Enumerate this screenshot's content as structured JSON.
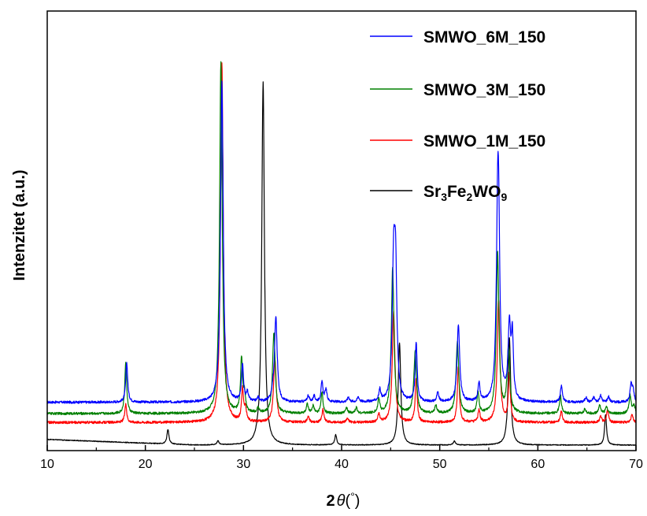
{
  "chart_data": {
    "type": "line",
    "title": "",
    "xlabel": {
      "main": "2",
      "italic": "θ",
      "open": "(",
      "unit": "°",
      "close": ")"
    },
    "ylabel": "Intenzitet (a.u.)",
    "xlim": [
      10,
      70
    ],
    "x_ticks": [
      "10",
      "20",
      "30",
      "40",
      "50",
      "60",
      "70"
    ],
    "y_ticks": [],
    "ylim": [
      0,
      1000
    ],
    "grid": false,
    "legend_position": "top-right",
    "series": [
      {
        "name": "SMWO_6M_150",
        "color": "#0000ff",
        "baseline": 106,
        "noise": 3,
        "peaks": [
          [
            18.1,
            98
          ],
          [
            27.8,
            795
          ],
          [
            29.9,
            90
          ],
          [
            30.4,
            22
          ],
          [
            31.5,
            10
          ],
          [
            33.0,
            14
          ],
          [
            33.3,
            210
          ],
          [
            36.6,
            16
          ],
          [
            37.2,
            14
          ],
          [
            38.0,
            48
          ],
          [
            38.4,
            30
          ],
          [
            40.7,
            12
          ],
          [
            41.7,
            12
          ],
          [
            43.9,
            28
          ],
          [
            45.3,
            305
          ],
          [
            45.5,
            300
          ],
          [
            47.6,
            145
          ],
          [
            49.8,
            22
          ],
          [
            51.9,
            188
          ],
          [
            54.0,
            45
          ],
          [
            55.9,
            345
          ],
          [
            56.0,
            330
          ],
          [
            57.1,
            180
          ],
          [
            57.4,
            150
          ],
          [
            62.4,
            40
          ],
          [
            64.9,
            12
          ],
          [
            65.7,
            12
          ],
          [
            66.4,
            16
          ],
          [
            67.2,
            14
          ],
          [
            69.5,
            42
          ],
          [
            69.7,
            30
          ]
        ]
      },
      {
        "name": "SMWO_3M_150",
        "color": "#008000",
        "baseline": 78,
        "noise": 3,
        "peaks": [
          [
            18.0,
            125
          ],
          [
            27.7,
            868
          ],
          [
            29.8,
            132
          ],
          [
            30.1,
            45
          ],
          [
            31.5,
            12
          ],
          [
            33.1,
            200
          ],
          [
            36.5,
            22
          ],
          [
            37.1,
            18
          ],
          [
            38.0,
            52
          ],
          [
            40.5,
            14
          ],
          [
            41.5,
            14
          ],
          [
            43.8,
            34
          ],
          [
            45.2,
            358
          ],
          [
            47.5,
            152
          ],
          [
            49.6,
            20
          ],
          [
            51.8,
            178
          ],
          [
            53.9,
            52
          ],
          [
            55.9,
            395
          ],
          [
            57.0,
            160
          ],
          [
            62.3,
            44
          ],
          [
            64.8,
            12
          ],
          [
            66.3,
            22
          ],
          [
            67.0,
            16
          ],
          [
            69.4,
            46
          ],
          [
            69.8,
            20
          ]
        ]
      },
      {
        "name": "SMWO_1M_150",
        "color": "#ff0000",
        "baseline": 56,
        "noise": 3,
        "peaks": [
          [
            18.0,
            44
          ],
          [
            27.8,
            890
          ],
          [
            29.9,
            80
          ],
          [
            30.2,
            30
          ],
          [
            33.2,
            160
          ],
          [
            36.6,
            14
          ],
          [
            38.1,
            32
          ],
          [
            40.6,
            10
          ],
          [
            43.8,
            20
          ],
          [
            45.3,
            275
          ],
          [
            47.6,
            110
          ],
          [
            51.9,
            140
          ],
          [
            54.0,
            30
          ],
          [
            56.0,
            300
          ],
          [
            57.1,
            120
          ],
          [
            62.4,
            28
          ],
          [
            66.4,
            14
          ],
          [
            67.1,
            30
          ],
          [
            69.6,
            22
          ]
        ]
      },
      {
        "name": "Sr3Fe2WO9",
        "color": "#000000",
        "baseline": 0,
        "noise": 1,
        "peaks": [
          [
            22.3,
            36
          ],
          [
            27.4,
            10
          ],
          [
            31.4,
            8
          ],
          [
            32.0,
            898
          ],
          [
            39.4,
            25
          ],
          [
            45.9,
            252
          ],
          [
            51.5,
            10
          ],
          [
            57.1,
            265
          ],
          [
            66.9,
            75
          ]
        ]
      }
    ],
    "legend": [
      {
        "text": "SMWO_6M_150",
        "color": "#0000ff"
      },
      {
        "text": "SMWO_3M_150",
        "color": "#008000"
      },
      {
        "text": "SMWO_1M_150",
        "color": "#ff0000"
      },
      {
        "parts": [
          [
            "Sr",
            false
          ],
          [
            "3",
            true
          ],
          [
            "Fe",
            false
          ],
          [
            "2",
            true
          ],
          [
            "WO",
            false
          ],
          [
            "9",
            true
          ]
        ],
        "color": "#000000"
      }
    ]
  }
}
